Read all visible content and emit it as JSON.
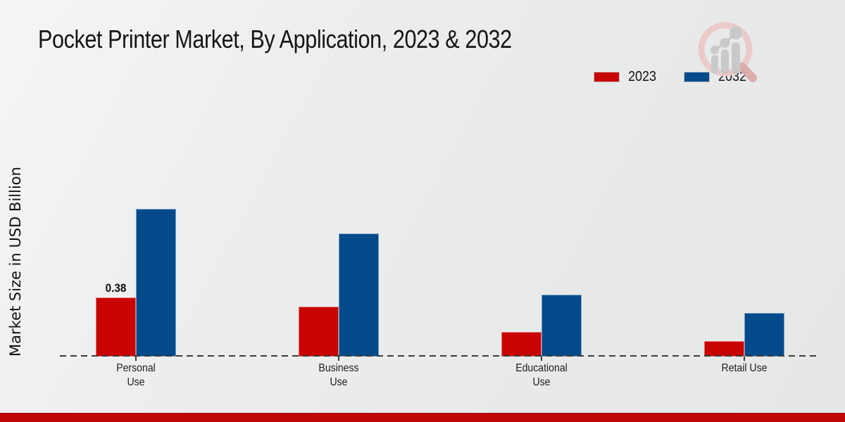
{
  "header": {
    "title": "Pocket Printer Market, By Application, 2023 & 2032"
  },
  "y_axis": {
    "label": "Market Size in USD Billion"
  },
  "legend": {
    "items": [
      {
        "label": "2023",
        "color": "#c90404"
      },
      {
        "label": "2032",
        "color": "#054a8b"
      }
    ]
  },
  "chart_data": {
    "type": "bar",
    "title": "Pocket Printer Market, By Application, 2023 & 2032",
    "categories": [
      "Personal Use",
      "Business Use",
      "Educational Use",
      "Retail Use"
    ],
    "series": [
      {
        "name": "2023",
        "color": "#c90404",
        "values": [
          0.38,
          0.32,
          0.16,
          0.1
        ],
        "value_labels": [
          "0.38",
          "",
          "",
          ""
        ]
      },
      {
        "name": "2032",
        "color": "#054a8b",
        "values": [
          0.95,
          0.79,
          0.4,
          0.28
        ],
        "value_labels": [
          "",
          "",
          "",
          ""
        ]
      }
    ],
    "xlabel": "",
    "ylabel": "Market Size in USD Billion",
    "ylim": [
      0,
      1.0
    ],
    "grid": false,
    "legend_position": "top-right",
    "baseline_style": "dashed",
    "annotations": [
      {
        "target": "Personal Use / 2023",
        "text": "0.38"
      }
    ]
  },
  "colors": {
    "series_2023": "#c90404",
    "series_2032": "#054a8b",
    "baseline": "#3c3c3c",
    "background": "#ebecec",
    "footer_strip": "#c10707",
    "text": "#161616"
  },
  "footer": {},
  "branding": {
    "logo": "magnifier-growth-chart-watermark"
  }
}
